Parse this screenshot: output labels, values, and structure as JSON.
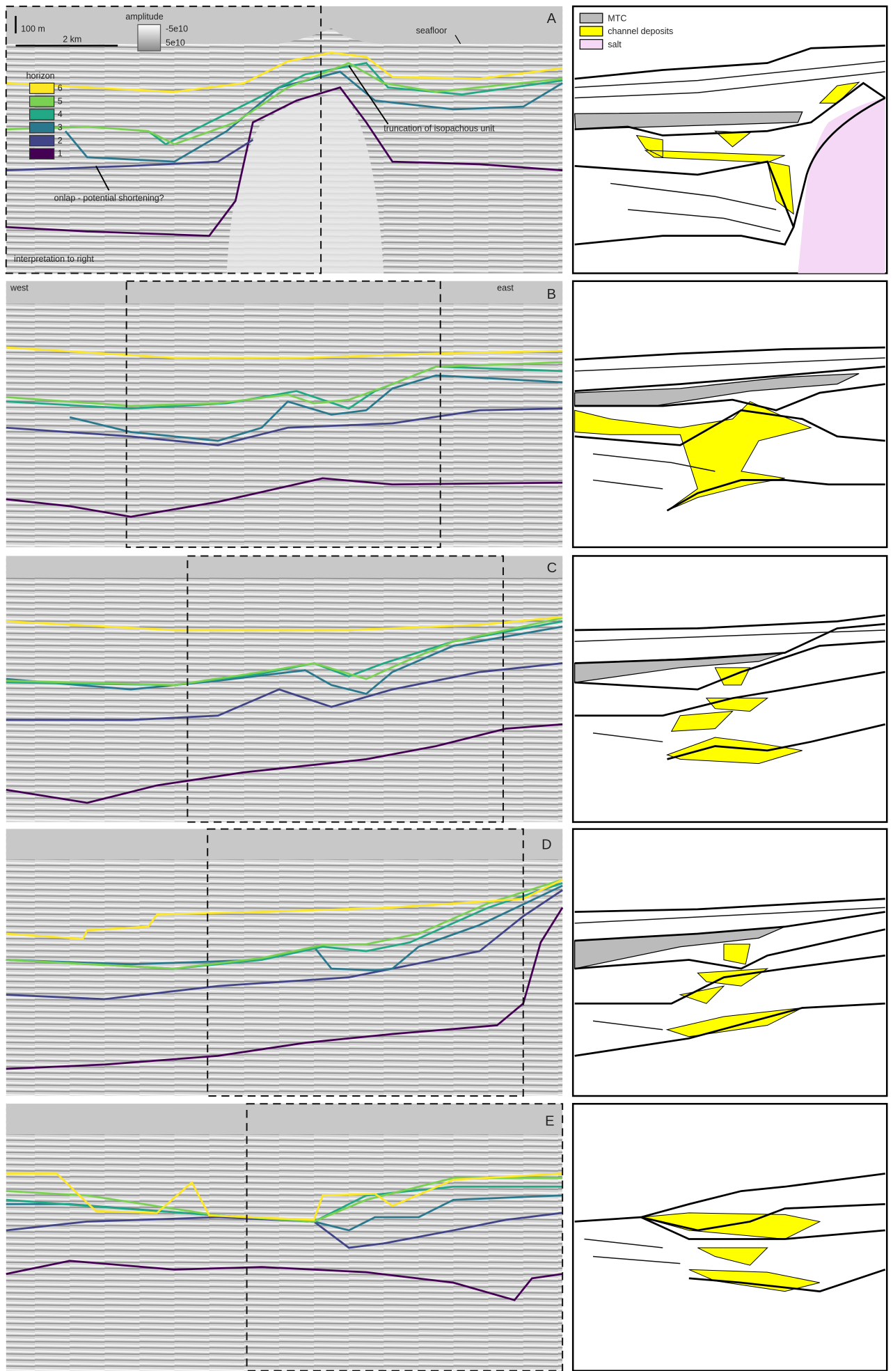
{
  "panels": [
    {
      "label": "A"
    },
    {
      "label": "B"
    },
    {
      "label": "C"
    },
    {
      "label": "D"
    },
    {
      "label": "E"
    }
  ],
  "scale_bar": {
    "vertical": "100 m",
    "horizontal": "2 km"
  },
  "amplitude": {
    "title": "amplitude",
    "low": "-5e10",
    "high": "5e10"
  },
  "horizon_legend": {
    "title": "horizon",
    "items": [
      "6",
      "5",
      "4",
      "3",
      "2",
      "1"
    ]
  },
  "annotations": {
    "seafloor": "seafloor",
    "truncation": "truncation of isopachous unit",
    "onlap": "onlap - potential shortening?",
    "interpretation": "interpretation to right",
    "west": "west",
    "east": "east"
  },
  "interpretation_legend": [
    "MTC",
    "channel deposits",
    "salt"
  ]
}
